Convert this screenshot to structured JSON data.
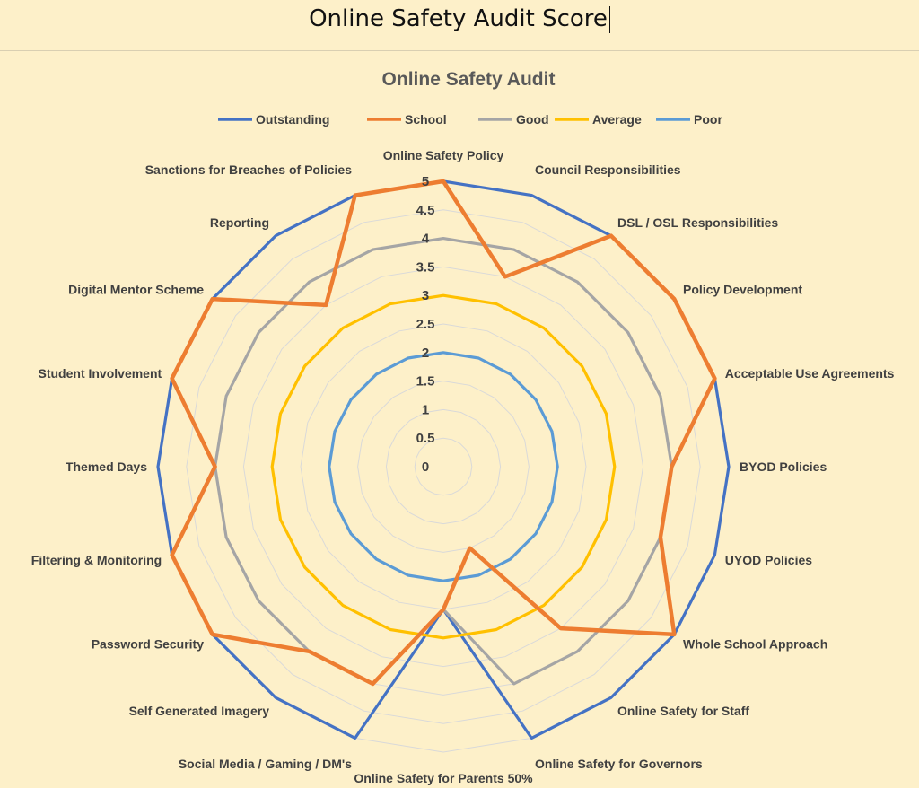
{
  "document": {
    "title": "Online Safety Audit Score"
  },
  "chart_data": {
    "type": "radar",
    "title": "Online Safety Audit",
    "legend_position": "top",
    "grid": true,
    "rlim": [
      0,
      5
    ],
    "ticks": [
      "0",
      "0.5",
      "1",
      "1.5",
      "2",
      "2.5",
      "3",
      "3.5",
      "4",
      "4.5",
      "5"
    ],
    "categories": [
      "Online Safety Policy",
      "Council Responsibilities",
      "DSL / OSL Responsibilities",
      "Policy Development",
      "Acceptable Use Agreements",
      "BYOD Policies",
      "UYOD Policies",
      "Whole School Approach",
      "Online Safety for Staff",
      "Online Safety for Governors",
      "Online Safety for Parents 50%",
      "Social Media / Gaming / DM's",
      "Self Generated Imagery",
      "Password Security",
      "Filtering & Monitoring",
      "Themed Days",
      "Student Involvement",
      "Digital Mentor Scheme",
      "Reporting",
      "Sanctions for Breaches of Policies"
    ],
    "series": [
      {
        "name": "Outstanding",
        "color": "#4472c4",
        "values": [
          5,
          5,
          5,
          5,
          5,
          5,
          5,
          5,
          5,
          5,
          2.5,
          5,
          5,
          5,
          5,
          5,
          5,
          5,
          5,
          5
        ]
      },
      {
        "name": "School",
        "color": "#ed7d31",
        "values": [
          5,
          3.5,
          5,
          5,
          5,
          4,
          4,
          5,
          3.5,
          1.5,
          2.5,
          4,
          4,
          5,
          5,
          4,
          5,
          5,
          3.5,
          5
        ]
      },
      {
        "name": "Good",
        "color": "#a5a5a5",
        "values": [
          4,
          4,
          4,
          4,
          4,
          4,
          4,
          4,
          4,
          4,
          2.5,
          4,
          4,
          4,
          4,
          4,
          4,
          4,
          4,
          4
        ]
      },
      {
        "name": "Average",
        "color": "#ffc000",
        "values": [
          3,
          3,
          3,
          3,
          3,
          3,
          3,
          3,
          3,
          3,
          3,
          3,
          3,
          3,
          3,
          3,
          3,
          3,
          3,
          3
        ]
      },
      {
        "name": "Poor",
        "color": "#5b9bd5",
        "values": [
          2,
          2,
          2,
          2,
          2,
          2,
          2,
          2,
          2,
          2,
          2,
          2,
          2,
          2,
          2,
          2,
          2,
          2,
          2,
          2
        ]
      }
    ]
  }
}
